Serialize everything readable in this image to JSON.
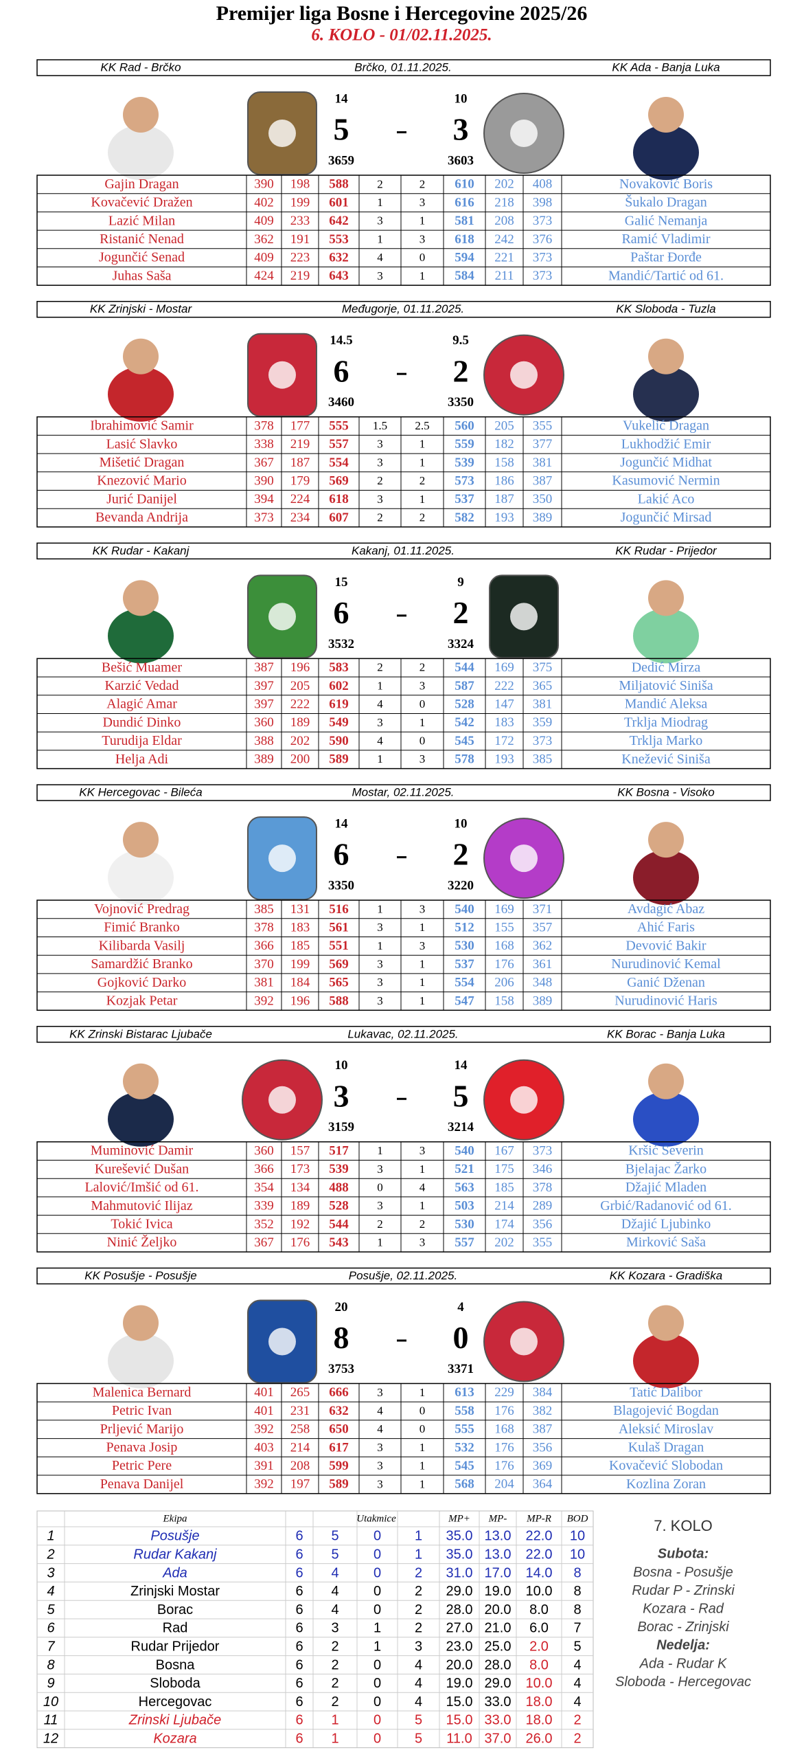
{
  "header": {
    "title": "Premijer liga Bosne i Hercegovine 2025/26",
    "subtitle": "6. KOLO - 01/02.11.2025."
  },
  "matches": [
    {
      "home": "KK Rad - Brčko",
      "venue": "Brčko, 01.11.2025.",
      "away": "KK Ada - Banja Luka",
      "home_points": 14,
      "home_score": 5,
      "home_total": 3659,
      "away_points": 10,
      "away_score": 3,
      "away_total": 3603,
      "rows": [
        [
          "Gajin Dragan",
          390,
          198,
          588,
          2,
          2,
          610,
          202,
          408,
          "Novaković Boris"
        ],
        [
          "Kovačević Dražen",
          402,
          199,
          601,
          1,
          3,
          616,
          218,
          398,
          "Šukalo Dragan"
        ],
        [
          "Lazić Milan",
          409,
          233,
          642,
          3,
          1,
          581,
          208,
          373,
          "Galić Nemanja"
        ],
        [
          "Ristanić Nenad",
          362,
          191,
          553,
          1,
          3,
          618,
          242,
          376,
          "Ramić Vladimir"
        ],
        [
          "Jogunčić Senad",
          409,
          223,
          632,
          4,
          0,
          594,
          221,
          373,
          "Paštar Đorđe"
        ],
        [
          "Juhas Saša",
          424,
          219,
          643,
          3,
          1,
          584,
          211,
          373,
          "Mandić/Tartić od 61."
        ]
      ]
    },
    {
      "home": "KK Zrinjski - Mostar",
      "venue": "Međugorje, 01.11.2025.",
      "away": "KK Sloboda - Tuzla",
      "home_points": 14.5,
      "home_score": 6,
      "home_total": 3460,
      "away_points": 9.5,
      "away_score": 2,
      "away_total": 3350,
      "rows": [
        [
          "Ibrahimović Samir",
          378,
          177,
          555,
          1.5,
          2.5,
          560,
          205,
          355,
          "Vukelić Dragan"
        ],
        [
          "Lasić Slavko",
          338,
          219,
          557,
          3,
          1,
          559,
          182,
          377,
          "Lukhodžić Emir"
        ],
        [
          "Mišetić Dragan",
          367,
          187,
          554,
          3,
          1,
          539,
          158,
          381,
          "Jogunčić Midhat"
        ],
        [
          "Knezović Mario",
          390,
          179,
          569,
          2,
          2,
          573,
          186,
          387,
          "Kasumović Nermin"
        ],
        [
          "Jurić Danijel",
          394,
          224,
          618,
          3,
          1,
          537,
          187,
          350,
          "Lakić Aco"
        ],
        [
          "Bevanda Andrija",
          373,
          234,
          607,
          2,
          2,
          582,
          193,
          389,
          "Jogunčić Mirsad"
        ]
      ]
    },
    {
      "home": "KK Rudar - Kakanj",
      "venue": "Kakanj, 01.11.2025.",
      "away": "KK Rudar - Prijedor",
      "home_points": 15,
      "home_score": 6,
      "home_total": 3532,
      "away_points": 9,
      "away_score": 2,
      "away_total": 3324,
      "rows": [
        [
          "Bešić Muamer",
          387,
          196,
          583,
          2,
          2,
          544,
          169,
          375,
          "Dedić Mirza"
        ],
        [
          "Karzić Vedad",
          397,
          205,
          602,
          1,
          3,
          587,
          222,
          365,
          "Miljatović Siniša"
        ],
        [
          "Alagić Amar",
          397,
          222,
          619,
          4,
          0,
          528,
          147,
          381,
          "Mandić Aleksa"
        ],
        [
          "Dundić Dinko",
          360,
          189,
          549,
          3,
          1,
          542,
          183,
          359,
          "Trklja Miodrag"
        ],
        [
          "Turudija Eldar",
          388,
          202,
          590,
          4,
          0,
          545,
          172,
          373,
          "Trklja Marko"
        ],
        [
          "Helja Adi",
          389,
          200,
          589,
          1,
          3,
          578,
          193,
          385,
          "Knežević Siniša"
        ]
      ]
    },
    {
      "home": "KK Hercegovac - Bileća",
      "venue": "Mostar, 02.11.2025.",
      "away": "KK Bosna - Visoko",
      "home_points": 14,
      "home_score": 6,
      "home_total": 3350,
      "away_points": 10,
      "away_score": 2,
      "away_total": 3220,
      "rows": [
        [
          "Vojnović Predrag",
          385,
          131,
          516,
          1,
          3,
          540,
          169,
          371,
          "Avdagić Abaz"
        ],
        [
          "Fimić Branko",
          378,
          183,
          561,
          3,
          1,
          512,
          155,
          357,
          "Ahić Faris"
        ],
        [
          "Kilibarda Vasilj",
          366,
          185,
          551,
          1,
          3,
          530,
          168,
          362,
          "Devović Bakir"
        ],
        [
          "Samardžić Branko",
          370,
          199,
          569,
          3,
          1,
          537,
          176,
          361,
          "Nurudinović Kemal"
        ],
        [
          "Gojković Darko",
          381,
          184,
          565,
          3,
          1,
          554,
          206,
          348,
          "Ganić Dženan"
        ],
        [
          "Kozjak Petar",
          392,
          196,
          588,
          3,
          1,
          547,
          158,
          389,
          "Nurudinović Haris"
        ]
      ]
    },
    {
      "home": "KK Zrinski Bistarac Ljubače",
      "venue": "Lukavac, 02.11.2025.",
      "away": "KK Borac - Banja Luka",
      "home_points": 10,
      "home_score": 3,
      "home_total": 3159,
      "away_points": 14,
      "away_score": 5,
      "away_total": 3214,
      "rows": [
        [
          "Muminović Damir",
          360,
          157,
          517,
          1,
          3,
          540,
          167,
          373,
          "Kršić Severin"
        ],
        [
          "Kurešević Dušan",
          366,
          173,
          539,
          3,
          1,
          521,
          175,
          346,
          "Bjelajac Žarko"
        ],
        [
          "Lalović/Imšić od 61.",
          354,
          134,
          488,
          0,
          4,
          563,
          185,
          378,
          "Džajić Mladen"
        ],
        [
          "Mahmutović Ilijaz",
          339,
          189,
          528,
          3,
          1,
          503,
          214,
          289,
          "Grbić/Radanović od 61."
        ],
        [
          "Tokić Ivica",
          352,
          192,
          544,
          2,
          2,
          530,
          174,
          356,
          "Džajić Ljubinko"
        ],
        [
          "Ninić Željko",
          367,
          176,
          543,
          1,
          3,
          557,
          202,
          355,
          "Mirković Saša"
        ]
      ]
    },
    {
      "home": "KK Posušje - Posušje",
      "venue": "Posušje, 02.11.2025.",
      "away": "KK Kozara - Gradiška",
      "home_points": 20,
      "home_score": 8,
      "home_total": 3753,
      "away_points": 4,
      "away_score": 0,
      "away_total": 3371,
      "rows": [
        [
          "Malenica Bernard",
          401,
          265,
          666,
          3,
          1,
          613,
          229,
          384,
          "Tatić Dalibor"
        ],
        [
          "Petric Ivan",
          401,
          231,
          632,
          4,
          0,
          558,
          176,
          382,
          "Blagojević Bogdan"
        ],
        [
          "Prljević Marijo",
          392,
          258,
          650,
          4,
          0,
          555,
          168,
          387,
          "Aleksić Miroslav"
        ],
        [
          "Penava Josip",
          403,
          214,
          617,
          3,
          1,
          532,
          176,
          356,
          "Kulaš Dragan"
        ],
        [
          "Petric Pere",
          391,
          208,
          599,
          3,
          1,
          545,
          176,
          369,
          "Kovačević Slobodan"
        ],
        [
          "Penava Danijel",
          392,
          197,
          589,
          3,
          1,
          568,
          204,
          364,
          "Kozlina Zoran"
        ]
      ]
    }
  ],
  "standings": {
    "headers": [
      "Ekipa",
      "Utakmice",
      "MP+",
      "MP-",
      "MP-R",
      "BOD"
    ],
    "rows": [
      [
        "1",
        "Posušje",
        "6",
        "5",
        "0",
        "1",
        "35.0",
        "13.0",
        "22.0",
        "10"
      ],
      [
        "2",
        "Rudar Kakanj",
        "6",
        "5",
        "0",
        "1",
        "35.0",
        "13.0",
        "22.0",
        "10"
      ],
      [
        "3",
        "Ada",
        "6",
        "4",
        "0",
        "2",
        "31.0",
        "17.0",
        "14.0",
        "8"
      ],
      [
        "4",
        "Zrinjski Mostar",
        "6",
        "4",
        "0",
        "2",
        "29.0",
        "19.0",
        "10.0",
        "8"
      ],
      [
        "5",
        "Borac",
        "6",
        "4",
        "0",
        "2",
        "28.0",
        "20.0",
        "8.0",
        "8"
      ],
      [
        "6",
        "Rad",
        "6",
        "3",
        "1",
        "2",
        "27.0",
        "21.0",
        "6.0",
        "7"
      ],
      [
        "7",
        "Rudar Prijedor",
        "6",
        "2",
        "1",
        "3",
        "23.0",
        "25.0",
        "2.0",
        "5"
      ],
      [
        "8",
        "Bosna",
        "6",
        "2",
        "0",
        "4",
        "20.0",
        "28.0",
        "8.0",
        "4"
      ],
      [
        "9",
        "Sloboda",
        "6",
        "2",
        "0",
        "4",
        "19.0",
        "29.0",
        "10.0",
        "4"
      ],
      [
        "10",
        "Hercegovac",
        "6",
        "2",
        "0",
        "4",
        "15.0",
        "33.0",
        "18.0",
        "4"
      ],
      [
        "11",
        "Zrinski Ljubače",
        "6",
        "1",
        "0",
        "5",
        "15.0",
        "33.0",
        "18.0",
        "2"
      ],
      [
        "12",
        "Kozara",
        "6",
        "1",
        "0",
        "5",
        "11.0",
        "37.0",
        "26.0",
        "2"
      ]
    ],
    "row_colors": [
      "#1f2db3",
      "#1f2db3",
      "#1f2db3",
      "#000000",
      "#000000",
      "#000000",
      "#000000",
      "#000000",
      "#000000",
      "#000000",
      "#d0202a",
      "#d0202a"
    ],
    "mpr_colors": [
      "#1f2db3",
      "#1f2db3",
      "#1f2db3",
      "#000000",
      "#000000",
      "#000000",
      "#d0202a",
      "#d0202a",
      "#d0202a",
      "#d0202a",
      "#d0202a",
      "#d0202a"
    ]
  },
  "next_round": {
    "title": "7. KOLO",
    "days": [
      {
        "day": "Subota:",
        "games": [
          "Bosna - Posušje",
          "Rudar P - Zrinski",
          "Kozara - Rad",
          "Borac - Zrinjski"
        ]
      },
      {
        "day": "Nedelja:",
        "games": [
          "Ada - Rudar K",
          "Sloboda - Hercegovac"
        ]
      }
    ]
  }
}
